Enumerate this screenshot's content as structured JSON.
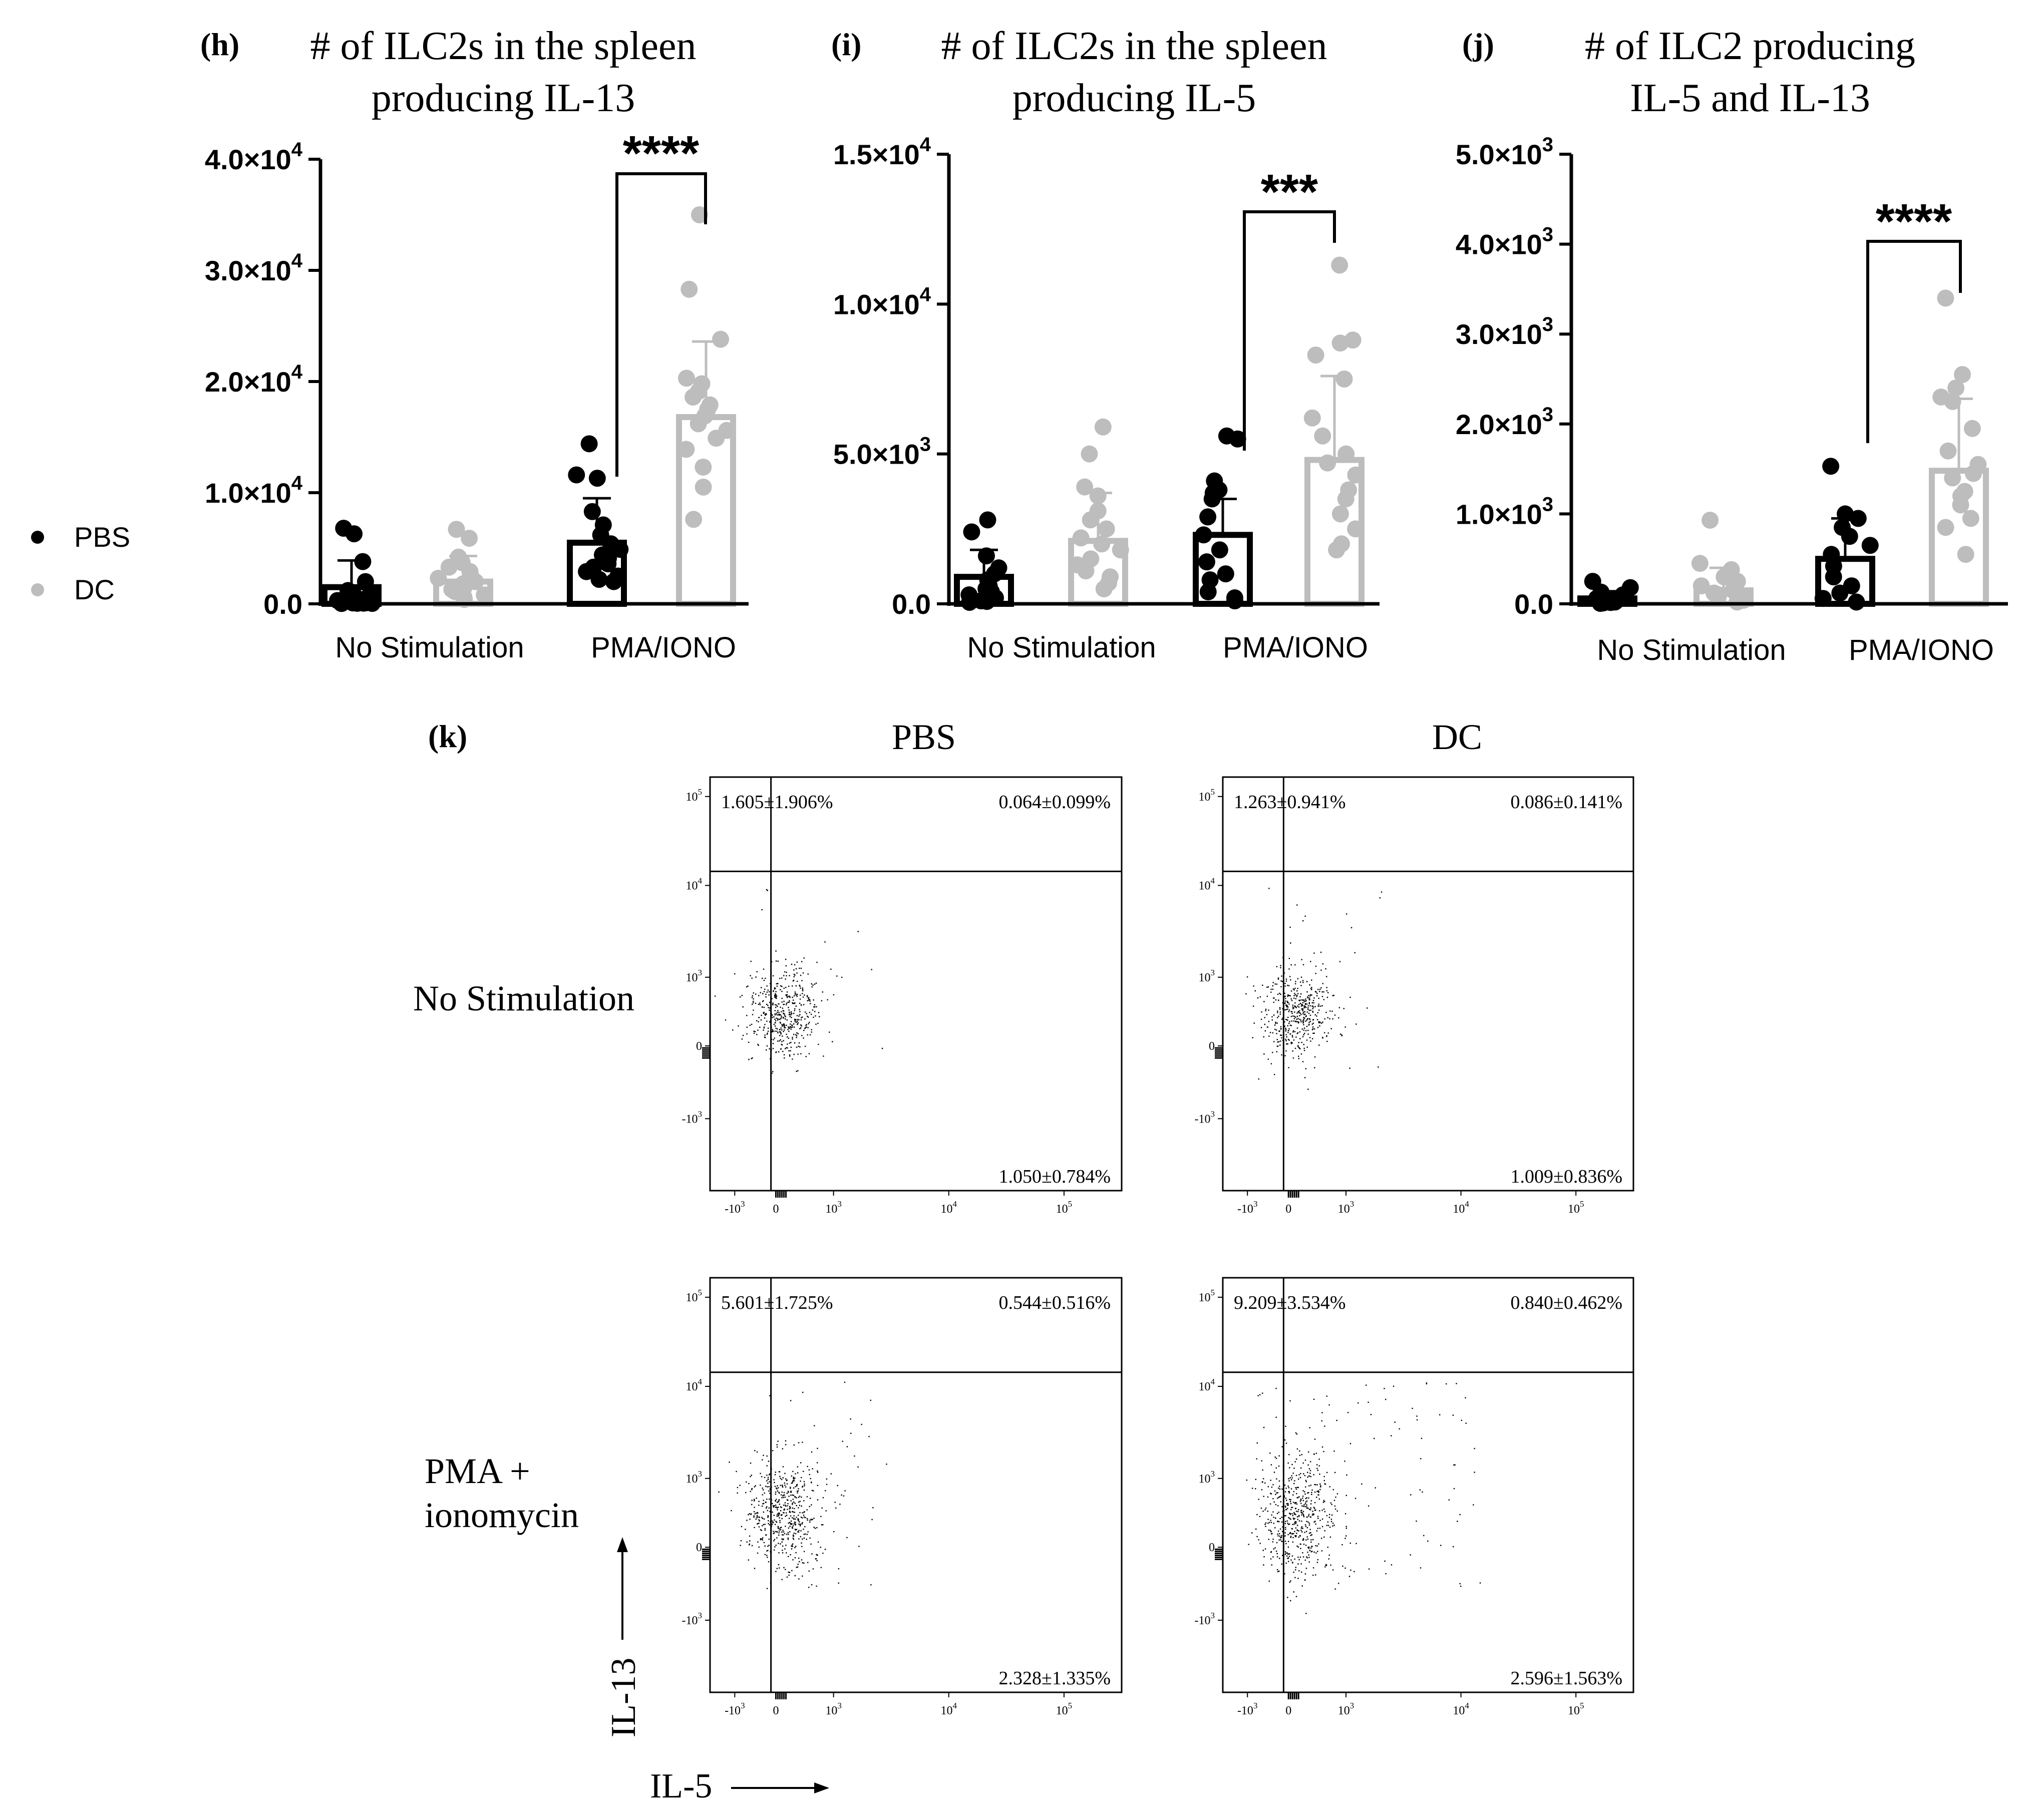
{
  "colors": {
    "pbs": "#000000",
    "dc": "#bdbdbd",
    "axis": "#000000"
  },
  "legend": {
    "items": [
      {
        "label": "PBS",
        "color": "#000000"
      },
      {
        "label": "DC",
        "color": "#bdbdbd"
      }
    ]
  },
  "chart_data": [
    {
      "panel": "(h)",
      "type": "bar",
      "title_lines": [
        "# of ILC2s in the spleen",
        "producing IL-13"
      ],
      "categories": [
        "No Stimulation",
        "PMA/IONO"
      ],
      "ylim": [
        0,
        40000
      ],
      "yticks": [
        {
          "value": 0,
          "base": "0.0",
          "exp": ""
        },
        {
          "value": 10000,
          "base": "1.0×10",
          "exp": "4"
        },
        {
          "value": 20000,
          "base": "2.0×10",
          "exp": "4"
        },
        {
          "value": 30000,
          "base": "3.0×10",
          "exp": "4"
        },
        {
          "value": 40000,
          "base": "4.0×10",
          "exp": "4"
        }
      ],
      "series": [
        {
          "name": "PBS",
          "color": "#000000",
          "means": [
            1500,
            5500
          ],
          "sd": [
            2400,
            4000
          ],
          "points": [
            [
              6800,
              6300,
              3800,
              2000,
              1200,
              800,
              600,
              400,
              300,
              200,
              150,
              100,
              80,
              60,
              50,
              40,
              30
            ],
            [
              14400,
              11600,
              11300,
              8300,
              7100,
              6200,
              5400,
              4900,
              4400,
              4100,
              3600,
              3300,
              2900,
              2500,
              2200,
              2000
            ]
          ]
        },
        {
          "name": "DC",
          "color": "#bdbdbd",
          "means": [
            2000,
            16800
          ],
          "sd": [
            2300,
            6800
          ],
          "points": [
            [
              6700,
              5900,
              4200,
              3700,
              3300,
              2900,
              2600,
              2300,
              2000,
              1800,
              1500,
              1300,
              1100,
              800,
              600,
              400
            ],
            [
              35000,
              28300,
              23800,
              20300,
              19800,
              19100,
              18600,
              17900,
              17500,
              16900,
              16200,
              15600,
              14900,
              13900,
              12300,
              10500,
              7600
            ]
          ]
        }
      ],
      "comparison": {
        "stars": "****",
        "between": "PMA/IONO"
      }
    },
    {
      "panel": "(i)",
      "type": "bar",
      "title_lines": [
        "# of ILC2s in the spleen",
        "producing IL-5"
      ],
      "categories": [
        "No Stimulation",
        "PMA/IONO"
      ],
      "ylim": [
        0,
        15000
      ],
      "yticks": [
        {
          "value": 0,
          "base": "0.0",
          "exp": ""
        },
        {
          "value": 5000,
          "base": "5.0×10",
          "exp": "3"
        },
        {
          "value": 10000,
          "base": "1.0×10",
          "exp": "4"
        },
        {
          "value": 15000,
          "base": "1.5×10",
          "exp": "4"
        }
      ],
      "series": [
        {
          "name": "PBS",
          "color": "#000000",
          "means": [
            900,
            2300
          ],
          "sd": [
            900,
            1200
          ],
          "points": [
            [
              2800,
              2400,
              1600,
              1200,
              1000,
              800,
              600,
              500,
              400,
              300,
              200,
              150,
              100,
              80,
              50
            ],
            [
              5600,
              5500,
              4100,
              3800,
              3700,
              3500,
              2900,
              2300,
              1800,
              1400,
              1000,
              800,
              400,
              200,
              100
            ]
          ]
        },
        {
          "name": "DC",
          "color": "#bdbdbd",
          "means": [
            2100,
            4800
          ],
          "sd": [
            1600,
            2800
          ],
          "points": [
            [
              5900,
              5000,
              3900,
              3600,
              3100,
              2800,
              2500,
              2200,
              2000,
              1800,
              1500,
              1300,
              1100,
              900,
              700,
              500
            ],
            [
              11300,
              8800,
              8700,
              8300,
              7500,
              6200,
              5600,
              5000,
              4700,
              4300,
              3800,
              3500,
              3000,
              2500,
              2000,
              1800
            ]
          ]
        }
      ],
      "comparison": {
        "stars": "***",
        "between": "PMA/IONO"
      }
    },
    {
      "panel": "(j)",
      "type": "bar",
      "title_lines": [
        "# of ILC2 producing",
        "IL-5 and IL-13"
      ],
      "categories": [
        "No Stimulation",
        "PMA/IONO"
      ],
      "ylim": [
        0,
        5000
      ],
      "yticks": [
        {
          "value": 0,
          "base": "0.0",
          "exp": ""
        },
        {
          "value": 1000,
          "base": "1.0×10",
          "exp": "3"
        },
        {
          "value": 2000,
          "base": "2.0×10",
          "exp": "3"
        },
        {
          "value": 3000,
          "base": "3.0×10",
          "exp": "3"
        },
        {
          "value": 4000,
          "base": "4.0×10",
          "exp": "3"
        },
        {
          "value": 5000,
          "base": "5.0×10",
          "exp": "3"
        }
      ],
      "series": [
        {
          "name": "PBS",
          "color": "#000000",
          "means": [
            60,
            500
          ],
          "sd": [
            80,
            450
          ],
          "points": [
            [
              250,
              180,
              130,
              100,
              80,
              60,
              50,
              40,
              30,
              20,
              15,
              10,
              5
            ],
            [
              1530,
              1000,
              950,
              850,
              750,
              650,
              550,
              420,
              300,
              200,
              120,
              60,
              20
            ]
          ]
        },
        {
          "name": "DC",
          "color": "#bdbdbd",
          "means": [
            150,
            1480
          ],
          "sd": [
            250,
            800
          ],
          "points": [
            [
              930,
              450,
              380,
              300,
              250,
              200,
              150,
              120,
              100,
              80,
              60,
              40,
              20
            ],
            [
              3400,
              2550,
              2400,
              2300,
              2250,
              1950,
              1700,
              1550,
              1450,
              1400,
              1250,
              1200,
              1100,
              950,
              850,
              550
            ]
          ]
        }
      ],
      "comparison": {
        "stars": "****",
        "between": "PMA/IONO"
      }
    }
  ],
  "flow": {
    "panel_label": "(k)",
    "col_labels": [
      "PBS",
      "DC"
    ],
    "row_labels": [
      "No Stimulation",
      "PMA +\nionomycin"
    ],
    "xlabel": "IL-5",
    "ylabel": "IL-13",
    "ticks": {
      "y": [
        {
          "base": "10",
          "exp": "5"
        },
        {
          "base": "10",
          "exp": "4"
        },
        {
          "base": "10",
          "exp": "3"
        },
        {
          "base": "0",
          "exp": ""
        },
        {
          "base": "-10",
          "exp": "3"
        }
      ],
      "x": [
        {
          "base": "-10",
          "exp": "3"
        },
        {
          "base": "0",
          "exp": ""
        },
        {
          "base": "10",
          "exp": "3"
        },
        {
          "base": "10",
          "exp": "4"
        },
        {
          "base": "10",
          "exp": "5"
        }
      ]
    },
    "plots": [
      {
        "row": 0,
        "col": 0,
        "ul": "1.605±1.906%",
        "ur": "0.064±0.099%",
        "lr": "1.050±0.784%"
      },
      {
        "row": 0,
        "col": 1,
        "ul": "1.263±0.941%",
        "ur": "0.086±0.141%",
        "lr": "1.009±0.836%"
      },
      {
        "row": 1,
        "col": 0,
        "ul": "5.601±1.725%",
        "ur": "0.544±0.516%",
        "lr": "2.328±1.335%"
      },
      {
        "row": 1,
        "col": 1,
        "ul": "9.209±3.534%",
        "ur": "0.840±0.462%",
        "lr": "2.596±1.563%"
      }
    ]
  }
}
